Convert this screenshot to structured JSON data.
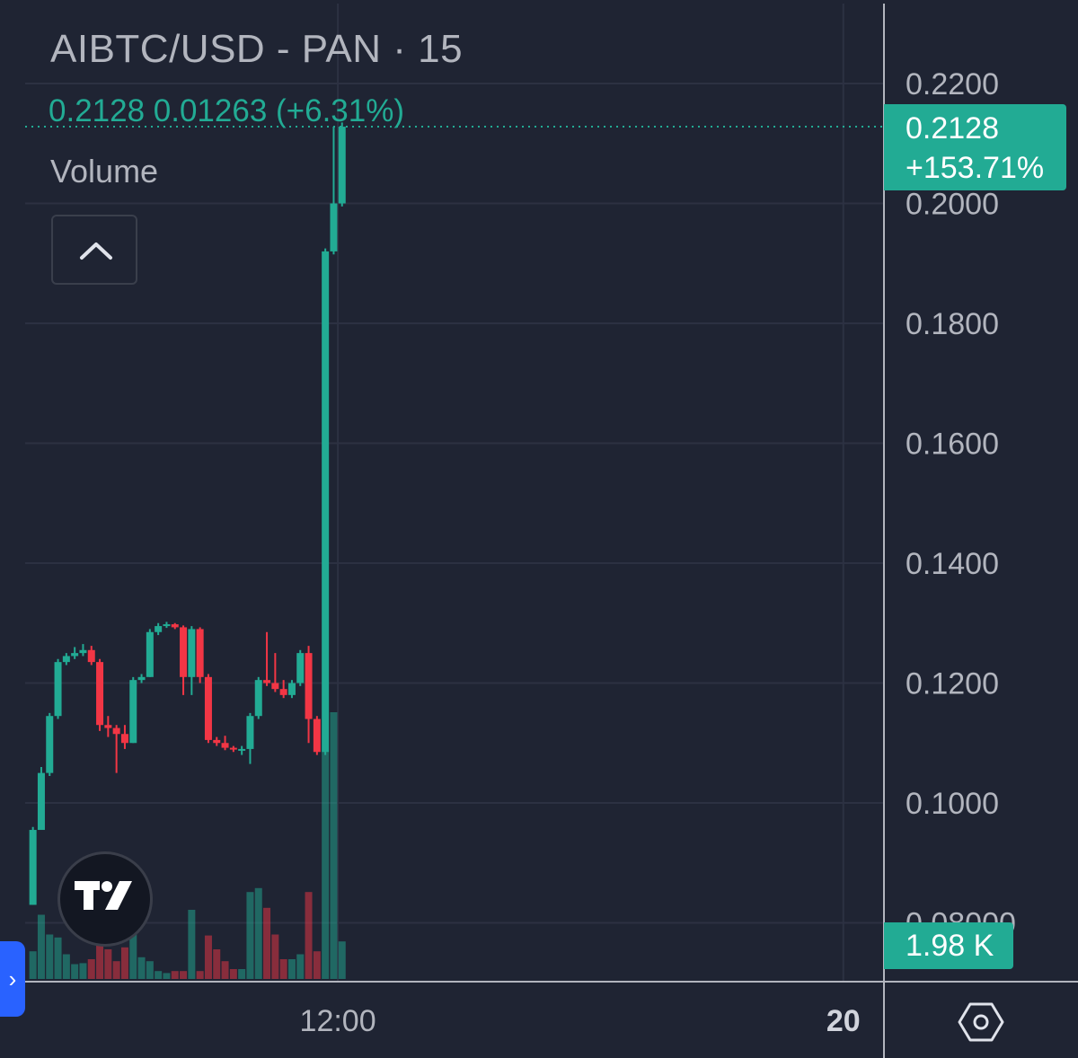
{
  "header": {
    "title": "AIBTC/USD - PAN · 15",
    "ohlc_line": "0.2128  0.01263 (+6.31%)",
    "volume_label": "Volume"
  },
  "price_tag": {
    "price": "0.2128",
    "change": "+153.71%"
  },
  "volume_tag": {
    "value": "1.98 K"
  },
  "controls": {
    "collapse_icon": "chevron-up-icon",
    "settings_icon": "hexagon-gear-icon",
    "logo": "tradingview-logo"
  },
  "colors": {
    "up": "#22ab94",
    "down": "#f23645",
    "background": "#1f2433",
    "grid": "#2c3142",
    "text": "#b2b5be"
  },
  "chart_data": {
    "type": "candlestick",
    "y_axis_ticks": [
      "0.2200",
      "0.2000",
      "0.1800",
      "0.1600",
      "0.1400",
      "0.1200",
      "0.1000",
      "0.08000"
    ],
    "x_axis_ticks": [
      {
        "label": "12:00",
        "bar": 36.5
      },
      {
        "label": "20",
        "bar": 97
      }
    ],
    "last_price": 0.2128,
    "candles": [
      {
        "o": 0.083,
        "h": 0.096,
        "l": 0.083,
        "c": 0.0955,
        "v": 28
      },
      {
        "o": 0.0955,
        "h": 0.106,
        "l": 0.0955,
        "c": 0.105,
        "v": 65
      },
      {
        "o": 0.105,
        "h": 0.115,
        "l": 0.1045,
        "c": 0.1145,
        "v": 45
      },
      {
        "o": 0.1145,
        "h": 0.124,
        "l": 0.114,
        "c": 0.1235,
        "v": 42
      },
      {
        "o": 0.1235,
        "h": 0.125,
        "l": 0.123,
        "c": 0.1245,
        "v": 25
      },
      {
        "o": 0.1245,
        "h": 0.126,
        "l": 0.124,
        "c": 0.125,
        "v": 15
      },
      {
        "o": 0.125,
        "h": 0.1265,
        "l": 0.1245,
        "c": 0.1255,
        "v": 16
      },
      {
        "o": 0.1255,
        "h": 0.1262,
        "l": 0.123,
        "c": 0.1235,
        "v": 20
      },
      {
        "o": 0.1235,
        "h": 0.124,
        "l": 0.112,
        "c": 0.113,
        "v": 35
      },
      {
        "o": 0.113,
        "h": 0.1145,
        "l": 0.111,
        "c": 0.1125,
        "v": 30
      },
      {
        "o": 0.1125,
        "h": 0.113,
        "l": 0.105,
        "c": 0.1115,
        "v": 18
      },
      {
        "o": 0.1115,
        "h": 0.113,
        "l": 0.109,
        "c": 0.11,
        "v": 32
      },
      {
        "o": 0.11,
        "h": 0.121,
        "l": 0.11,
        "c": 0.1205,
        "v": 60
      },
      {
        "o": 0.1205,
        "h": 0.1215,
        "l": 0.12,
        "c": 0.121,
        "v": 22
      },
      {
        "o": 0.121,
        "h": 0.129,
        "l": 0.121,
        "c": 0.1285,
        "v": 18
      },
      {
        "o": 0.1285,
        "h": 0.13,
        "l": 0.128,
        "c": 0.1295,
        "v": 8
      },
      {
        "o": 0.1295,
        "h": 0.1302,
        "l": 0.1292,
        "c": 0.1298,
        "v": 6
      },
      {
        "o": 0.1298,
        "h": 0.13,
        "l": 0.129,
        "c": 0.1293,
        "v": 8
      },
      {
        "o": 0.1293,
        "h": 0.1296,
        "l": 0.118,
        "c": 0.121,
        "v": 8
      },
      {
        "o": 0.121,
        "h": 0.1295,
        "l": 0.118,
        "c": 0.129,
        "v": 70
      },
      {
        "o": 0.129,
        "h": 0.1293,
        "l": 0.12,
        "c": 0.121,
        "v": 8
      },
      {
        "o": 0.121,
        "h": 0.1215,
        "l": 0.11,
        "c": 0.1105,
        "v": 44
      },
      {
        "o": 0.1105,
        "h": 0.111,
        "l": 0.1095,
        "c": 0.11,
        "v": 30
      },
      {
        "o": 0.11,
        "h": 0.1112,
        "l": 0.1088,
        "c": 0.1092,
        "v": 18
      },
      {
        "o": 0.1092,
        "h": 0.1095,
        "l": 0.1085,
        "c": 0.109,
        "v": 10
      },
      {
        "o": 0.109,
        "h": 0.1095,
        "l": 0.108,
        "c": 0.109,
        "v": 10
      },
      {
        "o": 0.109,
        "h": 0.115,
        "l": 0.1065,
        "c": 0.1145,
        "v": 88
      },
      {
        "o": 0.1145,
        "h": 0.121,
        "l": 0.114,
        "c": 0.1205,
        "v": 92
      },
      {
        "o": 0.1205,
        "h": 0.1285,
        "l": 0.1195,
        "c": 0.12,
        "v": 72
      },
      {
        "o": 0.12,
        "h": 0.125,
        "l": 0.1185,
        "c": 0.119,
        "v": 45
      },
      {
        "o": 0.119,
        "h": 0.1205,
        "l": 0.1175,
        "c": 0.118,
        "v": 20
      },
      {
        "o": 0.118,
        "h": 0.1205,
        "l": 0.1175,
        "c": 0.12,
        "v": 20
      },
      {
        "o": 0.12,
        "h": 0.1255,
        "l": 0.1195,
        "c": 0.125,
        "v": 25
      },
      {
        "o": 0.125,
        "h": 0.1262,
        "l": 0.11,
        "c": 0.114,
        "v": 88
      },
      {
        "o": 0.114,
        "h": 0.1145,
        "l": 0.108,
        "c": 0.1085,
        "v": 28
      },
      {
        "o": 0.1085,
        "h": 0.1925,
        "l": 0.108,
        "c": 0.192,
        "v": 230
      },
      {
        "o": 0.192,
        "h": 0.2128,
        "l": 0.1915,
        "c": 0.2,
        "v": 270
      },
      {
        "o": 0.2,
        "h": 0.2135,
        "l": 0.1995,
        "c": 0.2128,
        "v": 38
      }
    ]
  }
}
